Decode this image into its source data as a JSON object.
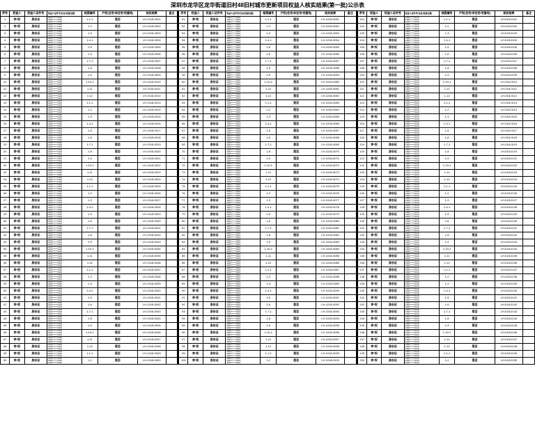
{
  "title": "深圳市龙华区龙华街道旧村48旧村城市更新项目权益人核实结果(第一批)公示表",
  "headers": [
    "序号",
    "权益人",
    "权益人证件号",
    "权益人证件号(住址/房屋位置)",
    "档案编号",
    "产权(住宅/非住宅/宅基地)",
    "核实结果",
    "备注"
  ],
  "sample_row": {
    "name": "李*权",
    "cert": "身份证",
    "idno_lines": [
      "4452******0115",
      "4452******0115",
      "4452******0115"
    ],
    "lot_prefix": "1-",
    "rel": "是否",
    "res_prefix_a": "LH-1018-0",
    "res_prefix_b": "LH-018-0"
  },
  "rows_per_col": 50,
  "num_cols": 3,
  "colors": {
    "bg": "#ffffff",
    "line": "#000000",
    "text": "#000000"
  }
}
